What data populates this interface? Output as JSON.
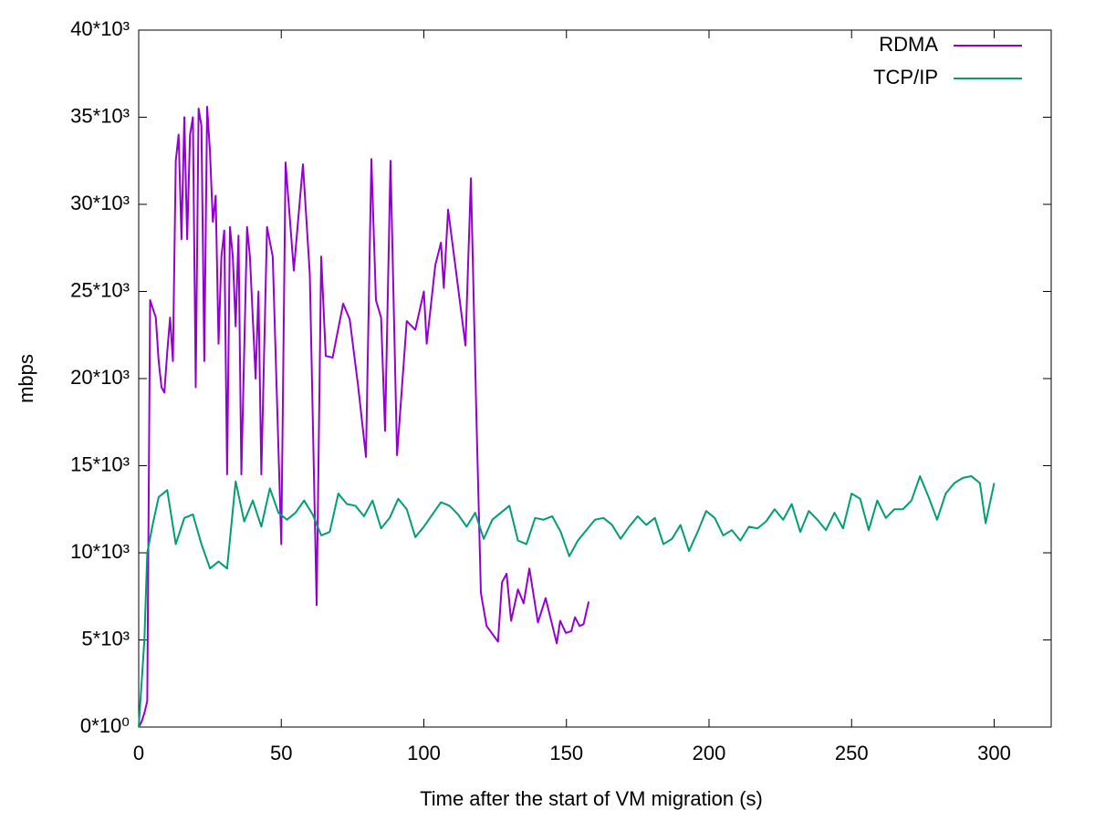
{
  "chart_data": {
    "type": "line",
    "xlabel": "Time after the start of VM migration (s)",
    "ylabel": "mbps",
    "xlim": [
      0,
      320
    ],
    "xticks": [
      0,
      50,
      100,
      150,
      200,
      250,
      300
    ],
    "ylim": [
      0,
      40000
    ],
    "yticks": [
      {
        "value": 0,
        "label": "0*10⁰"
      },
      {
        "value": 5000,
        "label": "5*10³"
      },
      {
        "value": 10000,
        "label": "10*10³"
      },
      {
        "value": 15000,
        "label": "15*10³"
      },
      {
        "value": 20000,
        "label": "20*10³"
      },
      {
        "value": 25000,
        "label": "25*10³"
      },
      {
        "value": 30000,
        "label": "30*10³"
      },
      {
        "value": 35000,
        "label": "35*10³"
      },
      {
        "value": 40000,
        "label": "40*10³"
      }
    ],
    "grid": false,
    "legend": "top-right",
    "series": [
      {
        "name": "RDMA",
        "color": "#9400d3",
        "x": [
          0,
          1,
          2,
          3,
          4,
          6,
          7,
          8,
          9,
          10,
          11,
          12,
          13,
          14,
          15,
          16,
          17,
          18,
          19,
          20,
          21,
          22,
          23,
          24,
          25,
          26,
          27,
          28,
          29,
          30,
          31,
          32,
          33,
          34,
          35,
          36,
          38,
          39,
          41,
          42,
          43,
          45,
          47,
          50,
          51.5,
          54.4,
          57.6,
          60,
          62.4,
          64,
          65.6,
          68,
          71.7,
          74,
          77,
          79.7,
          81.6,
          83.2,
          85,
          86.4,
          88.3,
          90.6,
          94,
          97,
          100,
          101,
          104,
          106,
          107,
          108.5,
          111.4,
          114.6,
          116.5,
          118.4,
          120,
          122,
          126,
          127.4,
          129,
          130.6,
          133,
          135,
          137,
          140,
          142.7,
          146.6,
          147.8,
          149.8,
          151.7,
          153,
          154.6,
          156,
          157.8
        ],
        "values": [
          0,
          300,
          800,
          1500,
          24500,
          23500,
          21000,
          19500,
          19200,
          21500,
          23500,
          21000,
          32500,
          34000,
          28000,
          35000,
          28000,
          34000,
          35000,
          19500,
          35500,
          34500,
          21000,
          35600,
          33000,
          29000,
          30500,
          22000,
          27000,
          28500,
          14500,
          28700,
          27000,
          23000,
          28200,
          14500,
          28700,
          27000,
          20000,
          25000,
          14500,
          28700,
          27000,
          10500,
          32400,
          26200,
          32300,
          26000,
          7000,
          27000,
          21300,
          21200,
          24300,
          23400,
          19500,
          15500,
          32600,
          24500,
          23500,
          17000,
          32500,
          15600,
          23300,
          22800,
          25000,
          22000,
          26500,
          27800,
          25200,
          29700,
          26000,
          21900,
          31500,
          18000,
          7700,
          5800,
          4900,
          8300,
          8800,
          6100,
          7900,
          7100,
          9100,
          6000,
          7400,
          4800,
          6100,
          5400,
          5500,
          6300,
          5800,
          5900,
          7200
        ]
      },
      {
        "name": "TCP/IP",
        "color": "#009e73",
        "x": [
          0,
          2,
          3,
          5,
          7,
          10,
          13,
          16,
          19,
          22,
          25,
          28,
          31,
          34,
          37,
          40,
          43,
          46,
          49,
          52,
          55,
          58,
          61,
          64,
          67,
          70,
          73,
          76,
          79,
          82,
          85,
          88,
          91,
          94,
          97,
          100,
          103,
          106,
          109,
          112,
          115,
          118,
          121,
          124,
          127,
          130,
          133,
          136,
          139,
          142,
          145,
          148,
          151,
          154,
          157,
          160,
          163,
          166,
          169,
          172,
          175,
          178,
          181,
          184,
          187,
          190,
          193,
          196,
          199,
          202,
          205,
          208,
          211,
          214,
          217,
          220,
          223,
          226,
          229,
          232,
          235,
          238,
          241,
          244,
          247,
          250,
          253,
          256,
          259,
          262,
          265,
          268,
          271,
          274,
          277,
          280,
          283,
          286,
          289,
          292,
          295,
          297,
          300
        ],
        "values": [
          0,
          5000,
          10000,
          11700,
          13200,
          13600,
          10500,
          12000,
          12200,
          10500,
          9100,
          9500,
          9100,
          14100,
          11800,
          13000,
          11500,
          13700,
          12300,
          11900,
          12300,
          13000,
          12200,
          11000,
          11200,
          13400,
          12800,
          12700,
          12100,
          13000,
          11400,
          12000,
          13100,
          12500,
          10900,
          11500,
          12200,
          12900,
          12700,
          12200,
          11500,
          12300,
          10800,
          11900,
          12300,
          12700,
          10700,
          10500,
          12000,
          11900,
          12100,
          11200,
          9800,
          10700,
          11300,
          11900,
          12000,
          11600,
          10800,
          11500,
          12100,
          11600,
          12000,
          10500,
          10800,
          11600,
          10100,
          11200,
          12400,
          12000,
          11000,
          11300,
          10700,
          11500,
          11400,
          11800,
          12500,
          11900,
          12800,
          11200,
          12400,
          11900,
          11300,
          12300,
          11400,
          13400,
          13100,
          11300,
          13000,
          12000,
          12500,
          12500,
          13000,
          14400,
          13200,
          11900,
          13400,
          14000,
          14300,
          14400,
          14000,
          11700,
          14000
        ]
      }
    ]
  }
}
